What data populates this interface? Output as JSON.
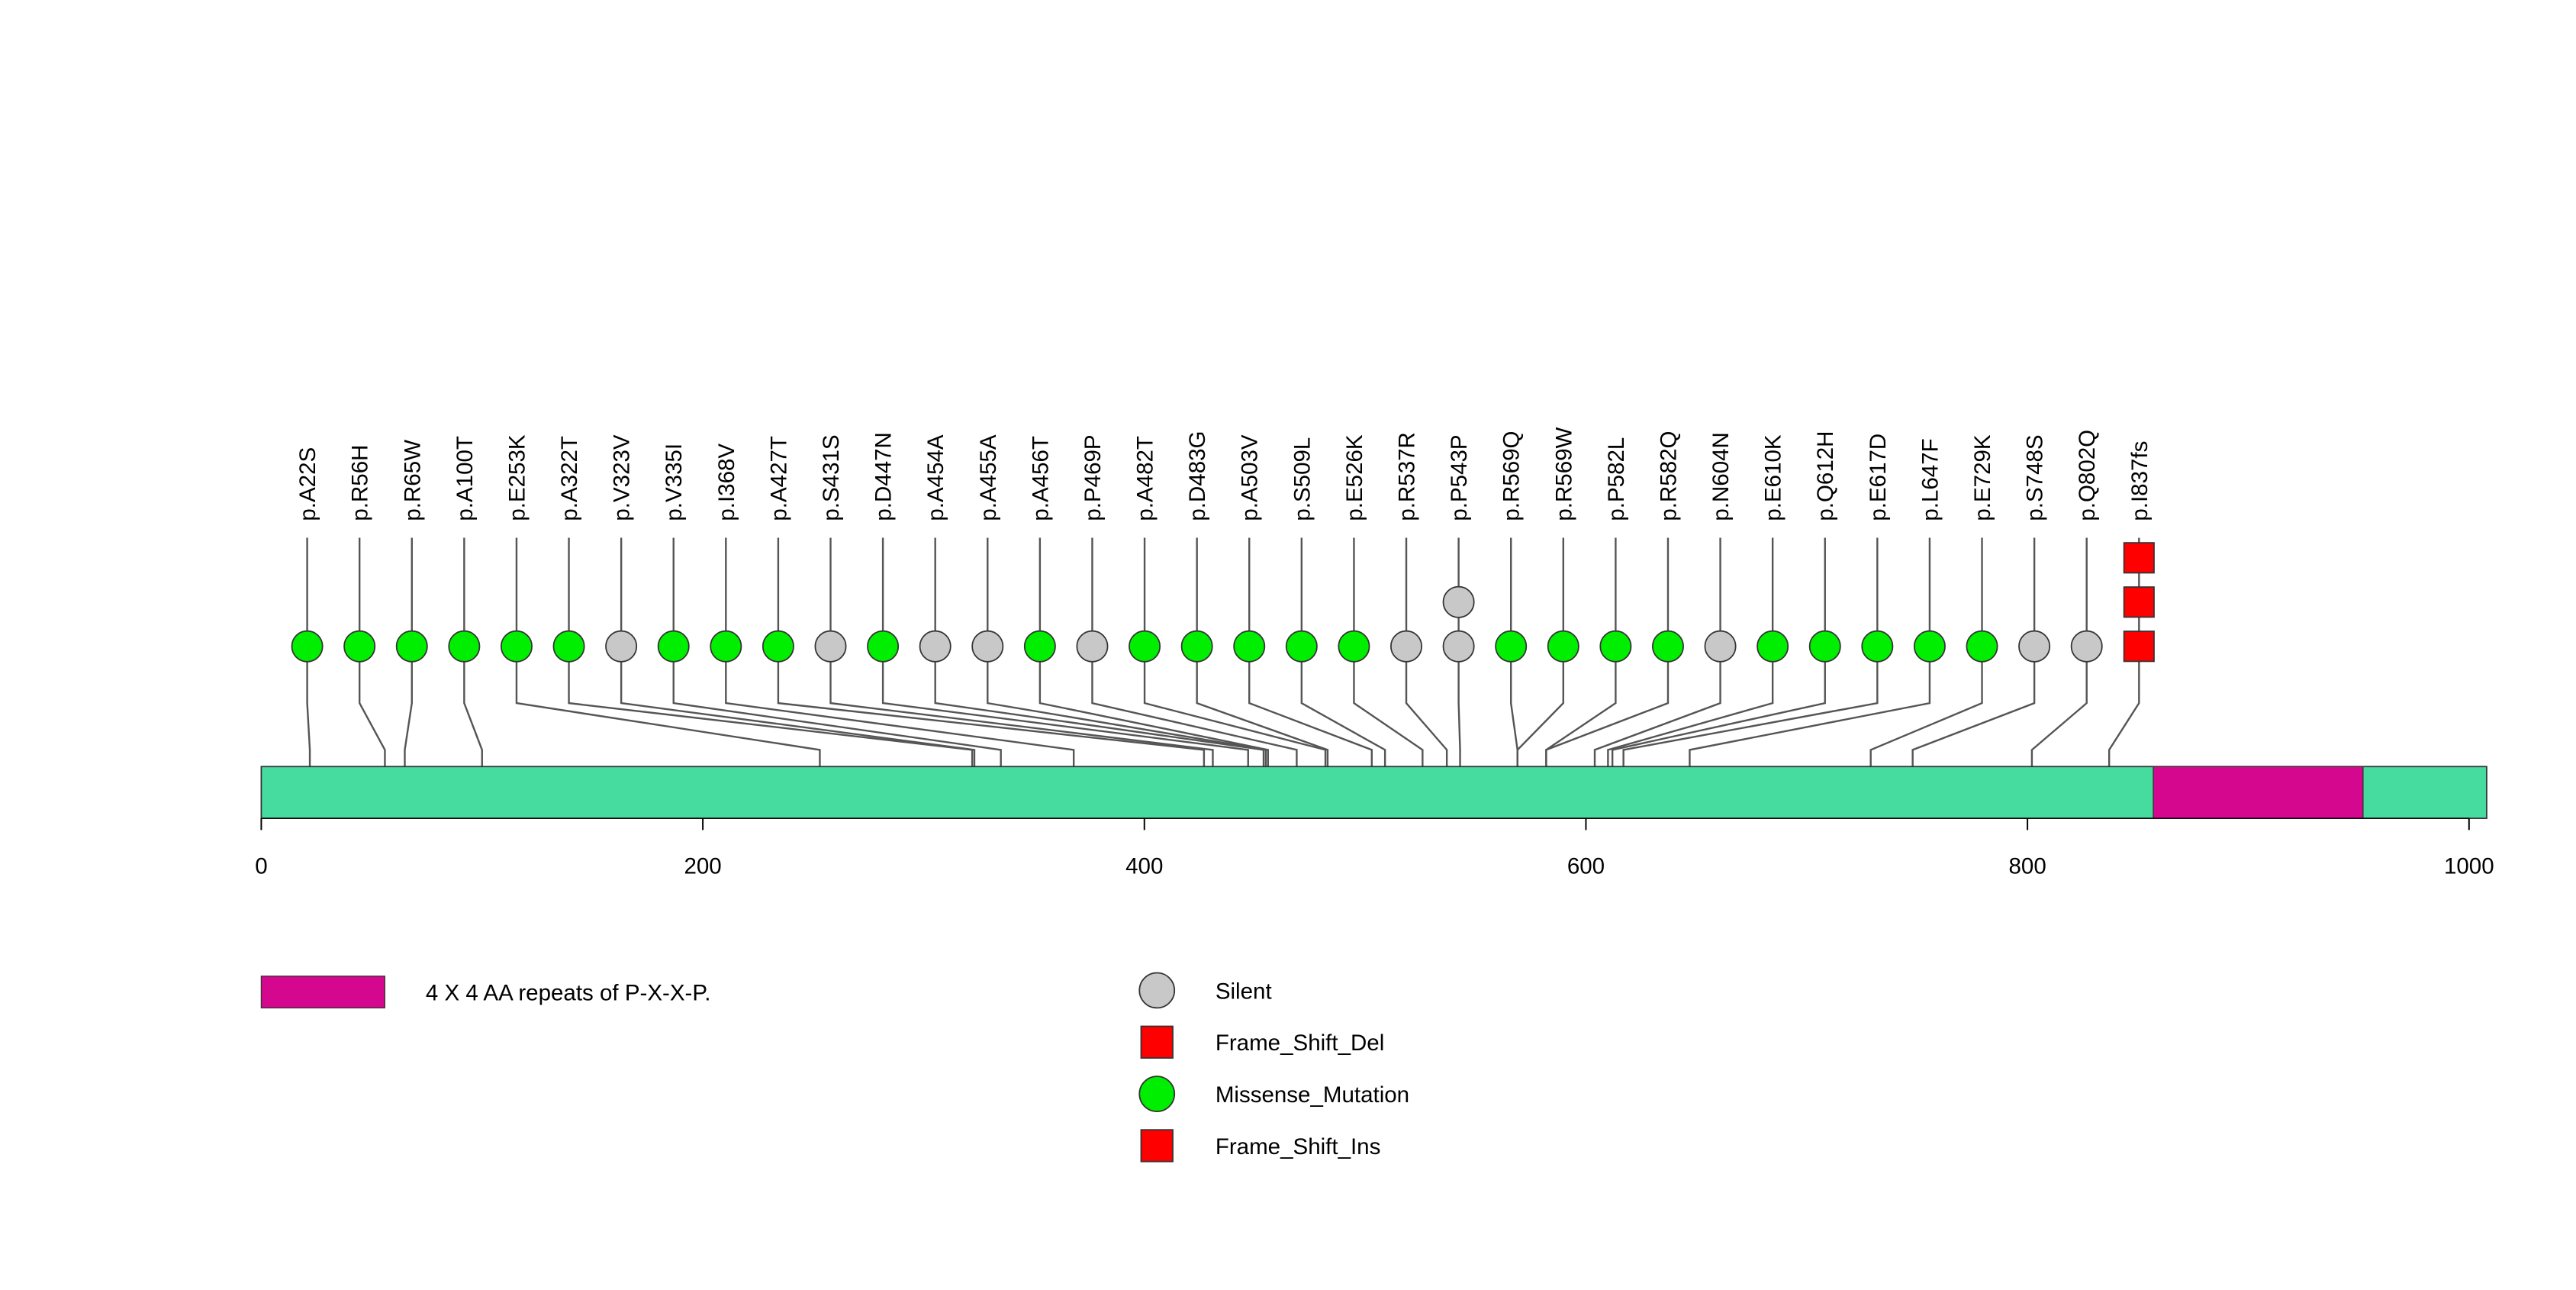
{
  "chart_data": {
    "type": "lollipop",
    "protein_length": 1008,
    "xlim": [
      0,
      1000
    ],
    "x_ticks": [
      0,
      200,
      400,
      600,
      800,
      1000
    ],
    "colors": {
      "backbone": "#46dc9f",
      "domain": "#d5078e",
      "Silent": "#c8c8c8",
      "Frame_Shift_Del": "#ff0000",
      "Missense_Mutation": "#00ee00",
      "Frame_Shift_Ins": "#ff0000"
    },
    "domains": [
      {
        "name": "4 X 4 AA repeats of P-X-X-P.",
        "start": 857,
        "end": 952
      }
    ],
    "legend": [
      {
        "label": "Silent",
        "shape": "circle",
        "color": "#c8c8c8"
      },
      {
        "label": "Frame_Shift_Del",
        "shape": "square",
        "color": "#ff0000"
      },
      {
        "label": "Missense_Mutation",
        "shape": "circle",
        "color": "#00ee00"
      },
      {
        "label": "Frame_Shift_Ins",
        "shape": "square",
        "color": "#ff0000"
      }
    ],
    "mutations": [
      {
        "label": "p.A22S",
        "position": 22,
        "types": [
          "Missense_Mutation"
        ]
      },
      {
        "label": "p.R56H",
        "position": 56,
        "types": [
          "Missense_Mutation"
        ]
      },
      {
        "label": "p.R65W",
        "position": 65,
        "types": [
          "Missense_Mutation"
        ]
      },
      {
        "label": "p.A100T",
        "position": 100,
        "types": [
          "Missense_Mutation"
        ]
      },
      {
        "label": "p.E253K",
        "position": 253,
        "types": [
          "Missense_Mutation"
        ]
      },
      {
        "label": "p.A322T",
        "position": 322,
        "types": [
          "Missense_Mutation"
        ]
      },
      {
        "label": "p.V323V",
        "position": 323,
        "types": [
          "Silent"
        ]
      },
      {
        "label": "p.V335I",
        "position": 335,
        "types": [
          "Missense_Mutation"
        ]
      },
      {
        "label": "p.I368V",
        "position": 368,
        "types": [
          "Missense_Mutation"
        ]
      },
      {
        "label": "p.A427T",
        "position": 427,
        "types": [
          "Missense_Mutation"
        ]
      },
      {
        "label": "p.S431S",
        "position": 431,
        "types": [
          "Silent"
        ]
      },
      {
        "label": "p.D447N",
        "position": 447,
        "types": [
          "Missense_Mutation"
        ]
      },
      {
        "label": "p.A454A",
        "position": 454,
        "types": [
          "Silent"
        ]
      },
      {
        "label": "p.A455A",
        "position": 455,
        "types": [
          "Silent"
        ]
      },
      {
        "label": "p.A456T",
        "position": 456,
        "types": [
          "Missense_Mutation"
        ]
      },
      {
        "label": "p.P469P",
        "position": 469,
        "types": [
          "Silent"
        ]
      },
      {
        "label": "p.A482T",
        "position": 482,
        "types": [
          "Missense_Mutation"
        ]
      },
      {
        "label": "p.D483G",
        "position": 483,
        "types": [
          "Missense_Mutation"
        ]
      },
      {
        "label": "p.A503V",
        "position": 503,
        "types": [
          "Missense_Mutation"
        ]
      },
      {
        "label": "p.S509L",
        "position": 509,
        "types": [
          "Missense_Mutation"
        ]
      },
      {
        "label": "p.E526K",
        "position": 526,
        "types": [
          "Missense_Mutation"
        ]
      },
      {
        "label": "p.R537R",
        "position": 537,
        "types": [
          "Silent"
        ]
      },
      {
        "label": "p.P543P",
        "position": 543,
        "types": [
          "Silent",
          "Silent"
        ]
      },
      {
        "label": "p.R569Q",
        "position": 569,
        "types": [
          "Missense_Mutation"
        ]
      },
      {
        "label": "p.R569W",
        "position": 569,
        "types": [
          "Missense_Mutation"
        ]
      },
      {
        "label": "p.P582L",
        "position": 582,
        "types": [
          "Missense_Mutation"
        ]
      },
      {
        "label": "p.R582Q",
        "position": 582,
        "types": [
          "Missense_Mutation"
        ]
      },
      {
        "label": "p.N604N",
        "position": 604,
        "types": [
          "Silent"
        ]
      },
      {
        "label": "p.E610K",
        "position": 610,
        "types": [
          "Missense_Mutation"
        ]
      },
      {
        "label": "p.Q612H",
        "position": 612,
        "types": [
          "Missense_Mutation"
        ]
      },
      {
        "label": "p.E617D",
        "position": 617,
        "types": [
          "Missense_Mutation"
        ]
      },
      {
        "label": "p.L647F",
        "position": 647,
        "types": [
          "Missense_Mutation"
        ]
      },
      {
        "label": "p.E729K",
        "position": 729,
        "types": [
          "Missense_Mutation"
        ]
      },
      {
        "label": "p.S748S",
        "position": 748,
        "types": [
          "Silent"
        ]
      },
      {
        "label": "p.Q802Q",
        "position": 802,
        "types": [
          "Silent"
        ]
      },
      {
        "label": "p.I837fs",
        "position": 837,
        "types": [
          "Frame_Shift_Ins",
          "Frame_Shift_Ins",
          "Frame_Shift_Del"
        ]
      }
    ]
  }
}
